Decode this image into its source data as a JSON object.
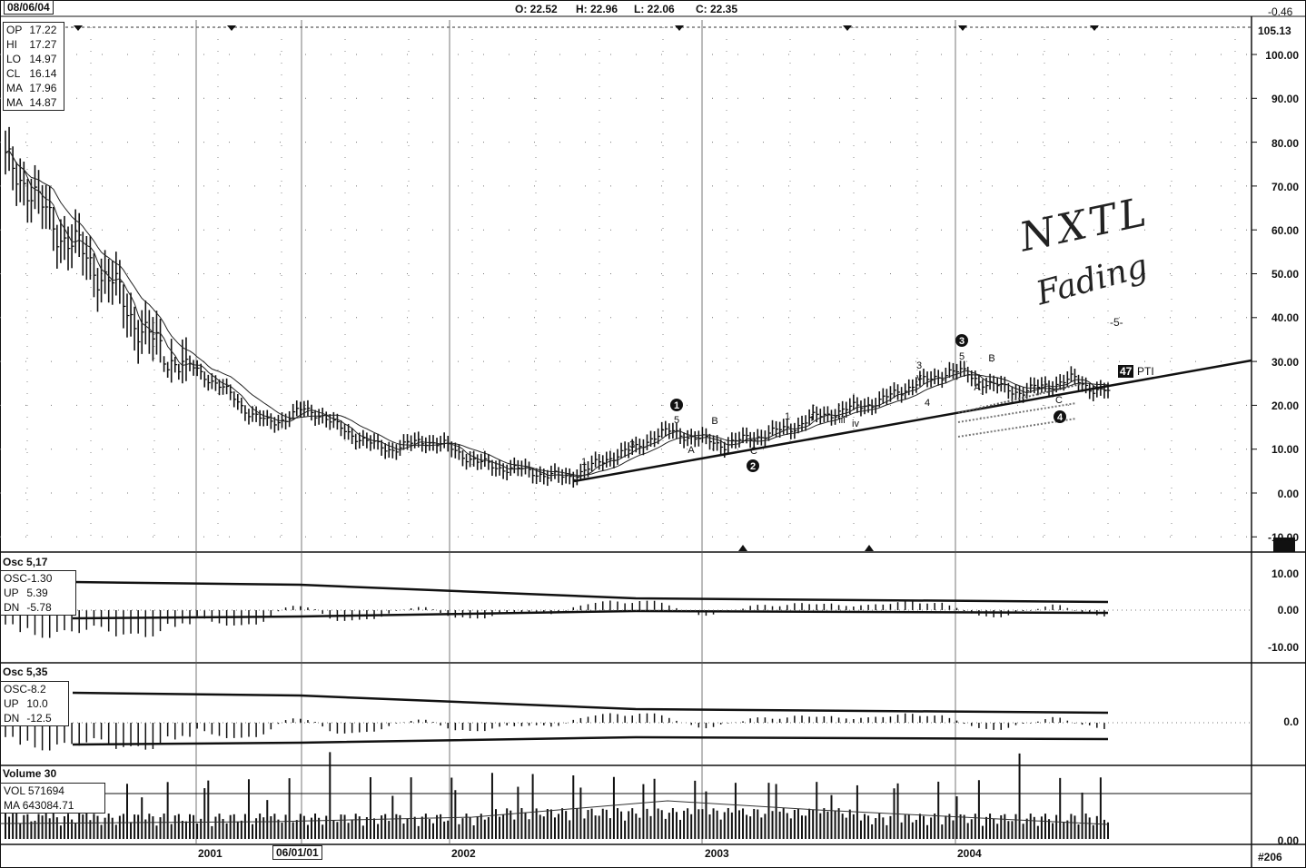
{
  "header": {
    "date": "08/06/04",
    "open": "O: 22.52",
    "high": "H: 22.96",
    "low": "L: 22.06",
    "close": "C: 22.35",
    "change": "-0.46",
    "last_price": "105.13",
    "chart_number": "#206"
  },
  "price_panel": {
    "stats": [
      {
        "label": "OP",
        "value": "17.22"
      },
      {
        "label": "HI",
        "value": "17.27"
      },
      {
        "label": "LO",
        "value": "14.97"
      },
      {
        "label": "CL",
        "value": "16.14"
      },
      {
        "label": "MA",
        "value": "17.96"
      },
      {
        "label": "MA",
        "value": "14.87"
      }
    ],
    "y_ticks": [
      "100.00",
      "90.00",
      "80.00",
      "70.00",
      "60.00",
      "50.00",
      "40.00",
      "30.00",
      "20.00",
      "10.00",
      "0.00",
      "-10.00"
    ],
    "annotation_handwritten": [
      "NXTL",
      "Fading"
    ],
    "pti_value": "47",
    "pti_label": "PTI",
    "wave_labels": {
      "circled_1": "1",
      "circled_2": "2",
      "circled_3": "3",
      "circled_4": "4",
      "w1": "1",
      "w3": "3",
      "w5": "5",
      "wA": "A",
      "wB": "B",
      "wC": "C",
      "i1": "1",
      "ii": "ii",
      "iii": "iii",
      "iv": "iv",
      "iii_small": "i",
      "v3": "3",
      "vv": "v",
      "v4": "4",
      "w5b": "5",
      "wA2": "A",
      "wB2": "B",
      "wC2": "C",
      "target5": "-5-"
    }
  },
  "osc1_panel": {
    "title": "Osc 5,17",
    "stats": [
      {
        "label": "OSC",
        "value": "-1.30"
      },
      {
        "label": "UP",
        "value": "5.39"
      },
      {
        "label": "DN",
        "value": "-5.78"
      }
    ],
    "y_ticks": [
      "10.00",
      "0.00",
      "-10.00"
    ]
  },
  "osc2_panel": {
    "title": "Osc 5,35",
    "stats": [
      {
        "label": "OSC",
        "value": "-8.2"
      },
      {
        "label": "UP",
        "value": "10.0"
      },
      {
        "label": "DN",
        "value": "-12.5"
      }
    ],
    "y_ticks": [
      "0.0"
    ]
  },
  "volume_panel": {
    "title": "Volume 30",
    "stats": [
      {
        "label": "VOL",
        "value": "571694"
      },
      {
        "label": "MA",
        "value": "643084.71"
      }
    ],
    "y_ticks": [
      "0.00"
    ]
  },
  "x_axis": {
    "labels": [
      "2001",
      "06/01/01",
      "2002",
      "2003",
      "2004"
    ]
  },
  "chart_data": {
    "type": "line",
    "title": "",
    "ylim": [
      -10,
      105
    ],
    "x_labels": [
      "2001",
      "2002",
      "2003",
      "2004"
    ],
    "series": [
      {
        "name": "",
        "values": [
          75,
          72,
          65,
          60,
          56,
          52,
          48,
          42,
          36,
          32,
          30,
          28,
          25,
          22,
          18,
          16,
          17,
          19,
          18,
          15,
          13,
          11,
          10,
          11,
          12,
          11,
          9,
          7,
          6,
          5.5,
          5,
          4,
          3.5,
          5,
          7,
          9,
          10,
          13,
          14,
          13,
          12,
          11,
          12,
          13,
          14,
          15,
          17,
          18,
          19,
          20,
          21,
          23,
          25,
          26,
          28,
          27,
          25,
          24,
          23,
          24,
          25,
          26,
          24,
          23
        ]
      }
    ]
  }
}
